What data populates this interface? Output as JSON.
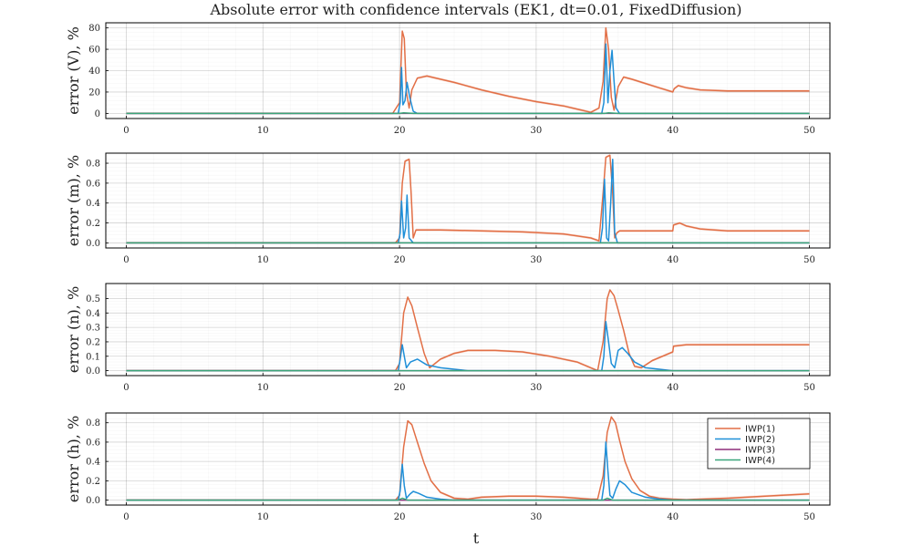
{
  "title": "Absolute error with confidence intervals (EK1, dt=0.01, FixedDiffusion)",
  "xlabel": "t",
  "legend": {
    "placement": "top-right of bottom panel",
    "entries": [
      {
        "label": "IWP(1)",
        "color": "#e26f46"
      },
      {
        "label": "IWP(2)",
        "color": "#1f8fd8"
      },
      {
        "label": "IWP(3)",
        "color": "#8e2f7a"
      },
      {
        "label": "IWP(4)",
        "color": "#3aa67a"
      }
    ]
  },
  "chart_data": [
    {
      "type": "line",
      "ylabel": "error (V), %",
      "xlim": [
        0,
        50
      ],
      "ylim": [
        0,
        80
      ],
      "xticks": [
        0,
        10,
        20,
        30,
        40,
        50
      ],
      "yticks": [
        0,
        20,
        40,
        60,
        80
      ],
      "grid": true,
      "series": [
        {
          "name": "IWP(1)",
          "color": "#e26f46",
          "band": true,
          "x": [
            0,
            19.5,
            20,
            20.2,
            20.35,
            20.5,
            20.7,
            20.9,
            21.3,
            22,
            24,
            26,
            28,
            30,
            32,
            34,
            34.6,
            34.9,
            35.1,
            35.3,
            35.5,
            35.7,
            36,
            36.4,
            37,
            38,
            39,
            40,
            40.1,
            40.4,
            41,
            42,
            44,
            46,
            48,
            50
          ],
          "y": [
            0,
            0,
            10,
            77,
            70,
            20,
            5,
            22,
            33,
            35,
            29,
            22,
            16,
            11,
            7,
            1,
            5,
            30,
            80,
            60,
            15,
            3,
            25,
            34,
            32,
            28,
            24,
            20,
            23,
            26,
            24,
            22,
            21,
            21,
            21,
            21
          ]
        },
        {
          "name": "IWP(2)",
          "color": "#1f8fd8",
          "x": [
            0,
            19.9,
            20.05,
            20.15,
            20.25,
            20.4,
            20.55,
            20.75,
            21,
            21.3,
            34.8,
            34.95,
            35.1,
            35.25,
            35.4,
            35.55,
            35.7,
            35.85,
            36.1,
            50
          ],
          "y": [
            0,
            0,
            10,
            43,
            8,
            12,
            29,
            15,
            2,
            0,
            0,
            10,
            65,
            10,
            40,
            59,
            30,
            5,
            0,
            0
          ]
        },
        {
          "name": "IWP(3)",
          "color": "#8e2f7a",
          "x": [
            0,
            50
          ],
          "y": [
            0,
            0
          ]
        },
        {
          "name": "IWP(4)",
          "color": "#3aa67a",
          "x": [
            0,
            20,
            20.3,
            21,
            35,
            35.3,
            36,
            50
          ],
          "y": [
            0,
            0,
            0.6,
            0,
            0,
            0.6,
            0,
            0
          ]
        }
      ]
    },
    {
      "type": "line",
      "ylabel": "error (m), %",
      "xlim": [
        0,
        50
      ],
      "ylim": [
        0,
        0.85
      ],
      "xticks": [
        0,
        10,
        20,
        30,
        40,
        50
      ],
      "yticks": [
        0.0,
        0.2,
        0.4,
        0.6,
        0.8
      ],
      "grid": true,
      "series": [
        {
          "name": "IWP(1)",
          "color": "#e26f46",
          "band": true,
          "x": [
            0,
            19.7,
            20,
            20.2,
            20.4,
            20.7,
            20.85,
            21,
            21.2,
            23,
            26,
            29,
            32,
            34,
            34.6,
            34.9,
            35.1,
            35.4,
            35.6,
            35.75,
            35.9,
            36.1,
            40,
            40.05,
            40.5,
            41,
            42,
            44,
            46,
            48,
            50
          ],
          "y": [
            0,
            0,
            0.05,
            0.6,
            0.82,
            0.84,
            0.5,
            0.05,
            0.13,
            0.13,
            0.12,
            0.11,
            0.09,
            0.05,
            0.02,
            0.5,
            0.86,
            0.88,
            0.5,
            0.05,
            0.1,
            0.12,
            0.12,
            0.18,
            0.2,
            0.17,
            0.14,
            0.12,
            0.12,
            0.12,
            0.12
          ]
        },
        {
          "name": "IWP(2)",
          "color": "#1f8fd8",
          "x": [
            0,
            19.9,
            20.05,
            20.15,
            20.3,
            20.45,
            20.55,
            20.7,
            21,
            34.7,
            34.85,
            35,
            35.15,
            35.3,
            35.45,
            35.6,
            35.75,
            35.95,
            50
          ],
          "y": [
            0,
            0,
            0.1,
            0.42,
            0.05,
            0.15,
            0.48,
            0.05,
            0,
            0,
            0.15,
            0.64,
            0.05,
            0.02,
            0.4,
            0.84,
            0.1,
            0,
            0
          ]
        },
        {
          "name": "IWP(3)",
          "color": "#8e2f7a",
          "x": [
            0,
            50
          ],
          "y": [
            0,
            0
          ]
        },
        {
          "name": "IWP(4)",
          "color": "#3aa67a",
          "x": [
            0,
            50
          ],
          "y": [
            0,
            0
          ]
        }
      ]
    },
    {
      "type": "line",
      "ylabel": "error (n), %",
      "xlim": [
        0,
        50
      ],
      "ylim": [
        0,
        0.57
      ],
      "xticks": [
        0,
        10,
        20,
        30,
        40,
        50
      ],
      "yticks": [
        0.0,
        0.1,
        0.2,
        0.3,
        0.4,
        0.5
      ],
      "grid": true,
      "series": [
        {
          "name": "IWP(1)",
          "color": "#e26f46",
          "band": true,
          "x": [
            0,
            19.7,
            20,
            20.3,
            20.6,
            20.9,
            21.3,
            21.8,
            22.2,
            23,
            24,
            25,
            27,
            29,
            31,
            33,
            34,
            34.5,
            34.9,
            35.2,
            35.4,
            35.7,
            36,
            36.4,
            36.8,
            37.2,
            37.7,
            38.5,
            39.5,
            40,
            40.05,
            41,
            43,
            46,
            50
          ],
          "y": [
            0,
            0,
            0.05,
            0.4,
            0.51,
            0.45,
            0.3,
            0.12,
            0.02,
            0.08,
            0.12,
            0.14,
            0.14,
            0.13,
            0.1,
            0.06,
            0.02,
            0.0,
            0.2,
            0.5,
            0.56,
            0.52,
            0.42,
            0.28,
            0.12,
            0.03,
            0.02,
            0.07,
            0.11,
            0.13,
            0.17,
            0.18,
            0.18,
            0.18,
            0.18
          ]
        },
        {
          "name": "IWP(2)",
          "color": "#1f8fd8",
          "x": [
            0,
            19.9,
            20.05,
            20.2,
            20.35,
            20.5,
            20.8,
            21.3,
            22,
            23,
            24,
            25,
            34.8,
            34.95,
            35.1,
            35.3,
            35.5,
            35.75,
            36,
            36.3,
            36.7,
            37.2,
            38,
            39,
            40,
            50
          ],
          "y": [
            0,
            0,
            0.08,
            0.18,
            0.1,
            0.02,
            0.06,
            0.08,
            0.04,
            0.02,
            0.01,
            0,
            0,
            0.1,
            0.34,
            0.2,
            0.05,
            0.02,
            0.14,
            0.16,
            0.12,
            0.06,
            0.02,
            0.01,
            0,
            0
          ]
        },
        {
          "name": "IWP(3)",
          "color": "#8e2f7a",
          "x": [
            0,
            50
          ],
          "y": [
            0,
            0
          ]
        },
        {
          "name": "IWP(4)",
          "color": "#3aa67a",
          "x": [
            0,
            50
          ],
          "y": [
            0,
            0
          ]
        }
      ]
    },
    {
      "type": "line",
      "ylabel": "error (h), %",
      "xlim": [
        0,
        50
      ],
      "ylim": [
        0,
        0.85
      ],
      "xticks": [
        0,
        10,
        20,
        30,
        40,
        50
      ],
      "yticks": [
        0.0,
        0.2,
        0.4,
        0.6,
        0.8
      ],
      "grid": true,
      "series": [
        {
          "name": "IWP(1)",
          "color": "#e26f46",
          "band": true,
          "x": [
            0,
            19.7,
            20,
            20.3,
            20.6,
            20.9,
            21.3,
            21.8,
            22.3,
            23,
            24,
            25,
            26,
            28,
            30,
            32,
            34,
            34.5,
            34.9,
            35.2,
            35.5,
            35.8,
            36.1,
            36.5,
            37,
            37.6,
            38.3,
            39,
            40,
            41,
            42,
            44,
            46,
            48,
            50
          ],
          "y": [
            0,
            0,
            0.05,
            0.55,
            0.82,
            0.78,
            0.6,
            0.38,
            0.2,
            0.08,
            0.02,
            0.01,
            0.03,
            0.04,
            0.04,
            0.03,
            0.01,
            0.01,
            0.25,
            0.7,
            0.86,
            0.8,
            0.62,
            0.4,
            0.22,
            0.1,
            0.04,
            0.02,
            0.01,
            0.005,
            0.01,
            0.02,
            0.035,
            0.05,
            0.065
          ]
        },
        {
          "name": "IWP(2)",
          "color": "#1f8fd8",
          "x": [
            0,
            19.9,
            20.05,
            20.2,
            20.35,
            20.5,
            20.75,
            21,
            21.4,
            22,
            23,
            24,
            34.8,
            34.95,
            35.1,
            35.25,
            35.4,
            35.6,
            35.85,
            36.1,
            36.5,
            37,
            38,
            39,
            40,
            50
          ],
          "y": [
            0,
            0,
            0.1,
            0.37,
            0.15,
            0.02,
            0.06,
            0.09,
            0.07,
            0.03,
            0.01,
            0,
            0,
            0.15,
            0.6,
            0.3,
            0.05,
            0.02,
            0.12,
            0.2,
            0.16,
            0.08,
            0.03,
            0.01,
            0,
            0
          ]
        },
        {
          "name": "IWP(3)",
          "color": "#8e2f7a",
          "x": [
            0,
            50
          ],
          "y": [
            0,
            0
          ]
        },
        {
          "name": "IWP(4)",
          "color": "#3aa67a",
          "x": [
            0,
            19.9,
            20.2,
            20.6,
            34.9,
            35.2,
            35.6,
            50
          ],
          "y": [
            0,
            0,
            0.02,
            0,
            0,
            0.02,
            0,
            0
          ]
        }
      ]
    }
  ]
}
